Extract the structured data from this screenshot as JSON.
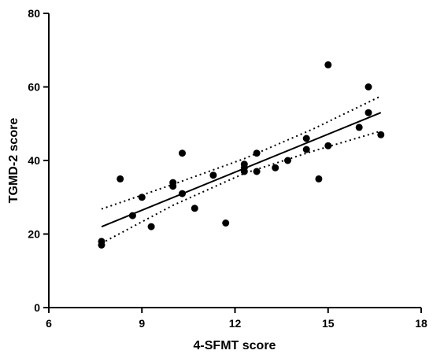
{
  "chart_data": {
    "type": "scatter",
    "title": "",
    "xlabel": "4-SFMT score",
    "ylabel": "TGMD-2 score",
    "xlim": [
      6,
      18
    ],
    "ylim": [
      0,
      80
    ],
    "xticks": [
      6,
      9,
      12,
      15,
      18
    ],
    "yticks": [
      0,
      20,
      40,
      60,
      80
    ],
    "grid": false,
    "points": [
      {
        "x": 7.7,
        "y": 18
      },
      {
        "x": 7.7,
        "y": 17
      },
      {
        "x": 8.3,
        "y": 35
      },
      {
        "x": 8.7,
        "y": 25
      },
      {
        "x": 9.0,
        "y": 30
      },
      {
        "x": 9.3,
        "y": 22
      },
      {
        "x": 10.0,
        "y": 34
      },
      {
        "x": 10.0,
        "y": 33
      },
      {
        "x": 10.3,
        "y": 42
      },
      {
        "x": 10.3,
        "y": 31
      },
      {
        "x": 10.7,
        "y": 27
      },
      {
        "x": 11.3,
        "y": 36
      },
      {
        "x": 11.7,
        "y": 23
      },
      {
        "x": 12.3,
        "y": 39
      },
      {
        "x": 12.3,
        "y": 38
      },
      {
        "x": 12.3,
        "y": 37
      },
      {
        "x": 12.7,
        "y": 42
      },
      {
        "x": 12.7,
        "y": 37
      },
      {
        "x": 13.3,
        "y": 38
      },
      {
        "x": 13.7,
        "y": 40
      },
      {
        "x": 14.3,
        "y": 46
      },
      {
        "x": 14.3,
        "y": 43
      },
      {
        "x": 14.7,
        "y": 35
      },
      {
        "x": 15.0,
        "y": 66
      },
      {
        "x": 15.0,
        "y": 44
      },
      {
        "x": 16.0,
        "y": 49
      },
      {
        "x": 16.3,
        "y": 60
      },
      {
        "x": 16.3,
        "y": 53
      },
      {
        "x": 16.7,
        "y": 47
      }
    ],
    "fit_line": {
      "x": [
        7.7,
        16.7
      ],
      "y": [
        22,
        53
      ]
    },
    "ci_upper": {
      "x": [
        7.7,
        10,
        12.3,
        14.5,
        16.7
      ],
      "y": [
        26.8,
        33.5,
        40.5,
        48.5,
        57.5
      ]
    },
    "ci_lower": {
      "x": [
        7.7,
        10,
        12.3,
        14.5,
        16.7
      ],
      "y": [
        17.5,
        27.8,
        36.5,
        42.5,
        48
      ]
    }
  }
}
